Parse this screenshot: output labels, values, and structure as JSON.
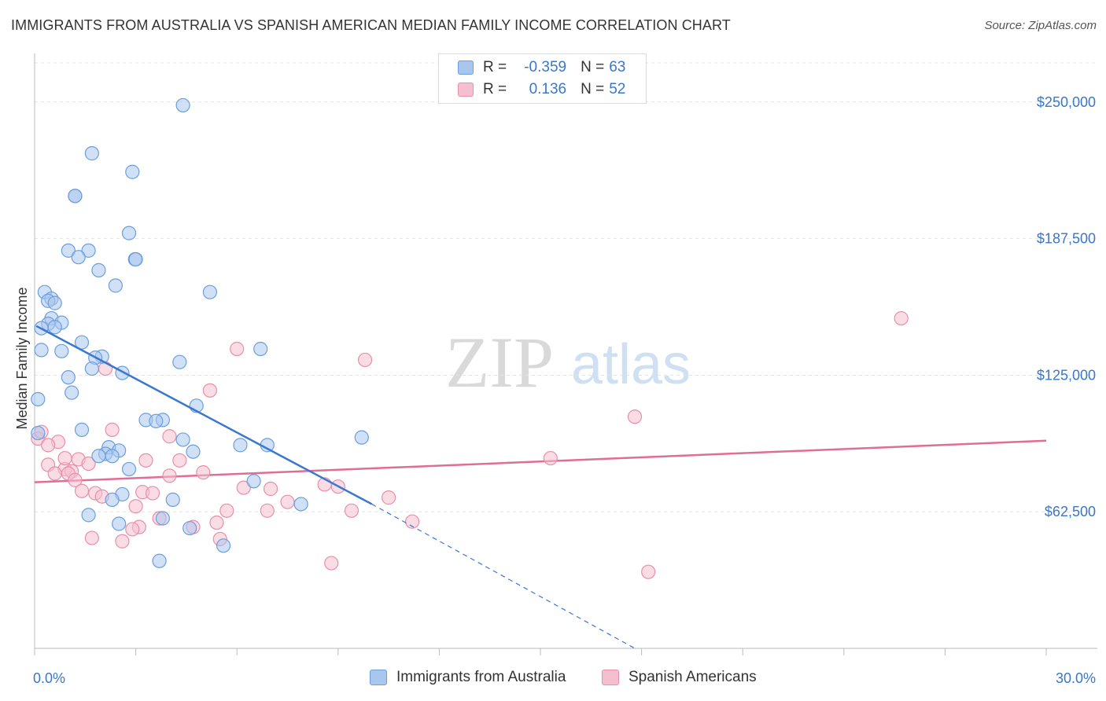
{
  "title": "IMMIGRANTS FROM AUSTRALIA VS SPANISH AMERICAN MEDIAN FAMILY INCOME CORRELATION CHART",
  "source": "Source: ZipAtlas.com",
  "watermark": {
    "zip": "ZIP",
    "atlas": "atlas"
  },
  "legend": {
    "rows": [
      {
        "r_label": "R =",
        "r_value": "-0.359",
        "n_label": "N =",
        "n_value": "63"
      },
      {
        "r_label": "R =",
        "r_value": "0.136",
        "n_label": "N =",
        "n_value": "52"
      }
    ]
  },
  "colors": {
    "blue_fill": "#a9c6ee",
    "blue_stroke": "#6b9fdc",
    "blue_line": "#3a77d0",
    "pink_fill": "#f6bfd0",
    "pink_stroke": "#e88fab",
    "pink_line": "#e06d95",
    "axis_text": "#3a77c8",
    "grid": "#e3e3e3"
  },
  "chart_data": {
    "type": "scatter",
    "title": "IMMIGRANTS FROM AUSTRALIA VS SPANISH AMERICAN MEDIAN FAMILY INCOME CORRELATION CHART",
    "xlabel": "",
    "ylabel": "Median Family Income",
    "xlim": [
      0,
      30
    ],
    "ylim": [
      0,
      262500
    ],
    "x_tick_labels": [
      "0.0%",
      "30.0%"
    ],
    "y_ticks": [
      62500,
      125000,
      187500,
      250000
    ],
    "y_tick_labels": [
      "$62,500",
      "$125,000",
      "$187,500",
      "$250,000"
    ],
    "grid": true,
    "legend_position": "top-center",
    "series": [
      {
        "name": "Immigrants from Australia",
        "r": -0.359,
        "n": 63,
        "trend": {
          "x0": 0.05,
          "y0": 147500,
          "x1": 10.0,
          "y1": 66000,
          "dash_to_x": 17.8,
          "dash_to_y": 0
        },
        "points": [
          [
            4.4,
            248500
          ],
          [
            1.7,
            226500
          ],
          [
            2.9,
            218000
          ],
          [
            1.2,
            207000
          ],
          [
            1.2,
            207000
          ],
          [
            2.8,
            190000
          ],
          [
            1.0,
            182000
          ],
          [
            1.6,
            182000
          ],
          [
            1.3,
            179000
          ],
          [
            2.98,
            178000
          ],
          [
            3.0,
            178000
          ],
          [
            1.9,
            173000
          ],
          [
            2.4,
            166000
          ],
          [
            5.2,
            163000
          ],
          [
            0.3,
            163000
          ],
          [
            0.5,
            160000
          ],
          [
            0.4,
            159000
          ],
          [
            0.6,
            158000
          ],
          [
            0.5,
            151000
          ],
          [
            0.8,
            149000
          ],
          [
            0.4,
            148500
          ],
          [
            0.6,
            147000
          ],
          [
            0.2,
            146500
          ],
          [
            1.4,
            140000
          ],
          [
            6.7,
            137000
          ],
          [
            0.2,
            136500
          ],
          [
            0.8,
            136000
          ],
          [
            2.0,
            133500
          ],
          [
            1.8,
            133000
          ],
          [
            4.3,
            131000
          ],
          [
            1.7,
            128000
          ],
          [
            2.6,
            126000
          ],
          [
            1.0,
            124000
          ],
          [
            1.1,
            117000
          ],
          [
            0.1,
            114000
          ],
          [
            4.8,
            111000
          ],
          [
            3.3,
            104500
          ],
          [
            3.8,
            104500
          ],
          [
            3.6,
            104000
          ],
          [
            1.4,
            100000
          ],
          [
            0.1,
            98500
          ],
          [
            9.7,
            96500
          ],
          [
            4.4,
            95500
          ],
          [
            2.2,
            92000
          ],
          [
            6.1,
            93000
          ],
          [
            6.9,
            93000
          ],
          [
            2.5,
            90500
          ],
          [
            2.1,
            89000
          ],
          [
            4.7,
            90000
          ],
          [
            2.3,
            88000
          ],
          [
            1.9,
            88000
          ],
          [
            2.8,
            82000
          ],
          [
            6.5,
            76500
          ],
          [
            2.6,
            70500
          ],
          [
            2.3,
            68000
          ],
          [
            4.1,
            68000
          ],
          [
            7.9,
            66000
          ],
          [
            1.6,
            61000
          ],
          [
            3.8,
            59500
          ],
          [
            2.5,
            57000
          ],
          [
            4.6,
            55000
          ],
          [
            5.6,
            47000
          ],
          [
            3.7,
            40000
          ]
        ]
      },
      {
        "name": "Spanish Americans",
        "r": 0.136,
        "n": 52,
        "trend": {
          "x0": 0.0,
          "y0": 76000,
          "x1": 30.0,
          "y1": 95000
        },
        "points": [
          [
            25.7,
            151000
          ],
          [
            6.0,
            137000
          ],
          [
            9.8,
            132000
          ],
          [
            2.1,
            128000
          ],
          [
            5.2,
            118000
          ],
          [
            17.8,
            106000
          ],
          [
            2.3,
            100000
          ],
          [
            4.0,
            97000
          ],
          [
            0.1,
            96000
          ],
          [
            0.7,
            94500
          ],
          [
            0.4,
            93000
          ],
          [
            15.3,
            87000
          ],
          [
            1.3,
            86500
          ],
          [
            4.3,
            86000
          ],
          [
            3.3,
            86000
          ],
          [
            0.4,
            84000
          ],
          [
            1.6,
            84500
          ],
          [
            0.9,
            82000
          ],
          [
            1.1,
            81000
          ],
          [
            5.0,
            80500
          ],
          [
            0.6,
            80000
          ],
          [
            1.0,
            80000
          ],
          [
            4.0,
            79000
          ],
          [
            1.2,
            77000
          ],
          [
            8.6,
            75000
          ],
          [
            9.0,
            74000
          ],
          [
            6.2,
            73500
          ],
          [
            7.0,
            73000
          ],
          [
            1.4,
            72000
          ],
          [
            3.2,
            71500
          ],
          [
            3.5,
            71000
          ],
          [
            1.8,
            71000
          ],
          [
            2.0,
            69500
          ],
          [
            10.5,
            69000
          ],
          [
            7.5,
            67000
          ],
          [
            3.0,
            65000
          ],
          [
            5.7,
            63000
          ],
          [
            6.9,
            63000
          ],
          [
            9.4,
            63000
          ],
          [
            3.7,
            59500
          ],
          [
            11.2,
            58000
          ],
          [
            5.4,
            57500
          ],
          [
            3.1,
            55500
          ],
          [
            2.9,
            54500
          ],
          [
            4.7,
            55500
          ],
          [
            1.7,
            50500
          ],
          [
            2.6,
            49000
          ],
          [
            5.5,
            50000
          ],
          [
            8.8,
            39000
          ],
          [
            18.2,
            35000
          ],
          [
            0.9,
            87000
          ],
          [
            0.2,
            99000
          ]
        ]
      }
    ]
  }
}
